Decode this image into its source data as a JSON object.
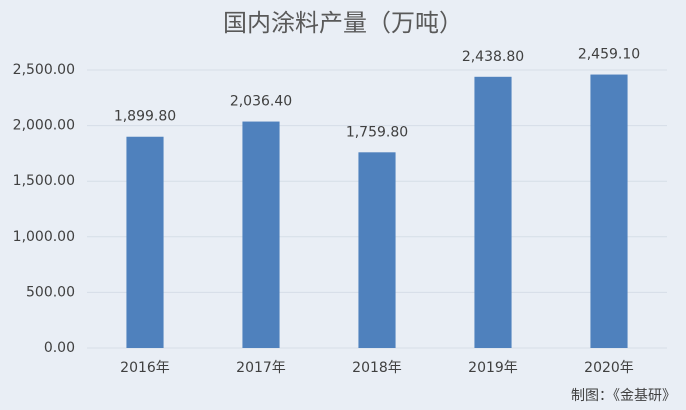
{
  "chart_data": {
    "type": "bar",
    "title": "国内涂料产量（万吨）",
    "categories": [
      "2016年",
      "2017年",
      "2018年",
      "2019年",
      "2020年"
    ],
    "values": [
      1899.8,
      2036.4,
      1759.8,
      2438.8,
      2459.1
    ],
    "value_labels": [
      "1,899.80",
      "2,036.40",
      "1,759.80",
      "2,438.80",
      "2,459.10"
    ],
    "color": "#4f81bd",
    "ylim": [
      0,
      2500
    ],
    "yticks": [
      {
        "value": 0,
        "label": "0.00"
      },
      {
        "value": 500,
        "label": "500.00"
      },
      {
        "value": 1000,
        "label": "1,000.00"
      },
      {
        "value": 1500,
        "label": "1,500.00"
      },
      {
        "value": 2000,
        "label": "2,000.00"
      },
      {
        "value": 2500,
        "label": "2,500.00"
      }
    ],
    "grid": true,
    "annotation": "制图：《金基研》"
  }
}
